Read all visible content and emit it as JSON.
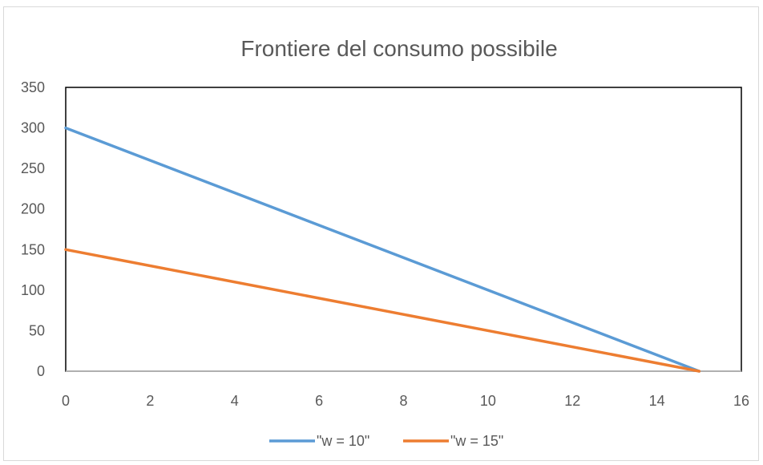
{
  "chart_data": {
    "type": "line",
    "title": "Frontiere del consumo possibile",
    "xlabel": "",
    "ylabel": "",
    "xlim": [
      0,
      16
    ],
    "ylim": [
      0,
      350
    ],
    "x_ticks": [
      0,
      2,
      4,
      6,
      8,
      10,
      12,
      14,
      16
    ],
    "y_ticks": [
      0,
      50,
      100,
      150,
      200,
      250,
      300,
      350
    ],
    "grid": false,
    "legend_position": "bottom",
    "series": [
      {
        "name": "\"w = 10\"",
        "color": "#5b9bd5",
        "points": [
          {
            "x": 0,
            "y": 300
          },
          {
            "x": 15,
            "y": 0
          }
        ]
      },
      {
        "name": "\"w = 15\"",
        "color": "#ed7d31",
        "points": [
          {
            "x": 0,
            "y": 150
          },
          {
            "x": 15,
            "y": 0
          }
        ]
      }
    ]
  }
}
